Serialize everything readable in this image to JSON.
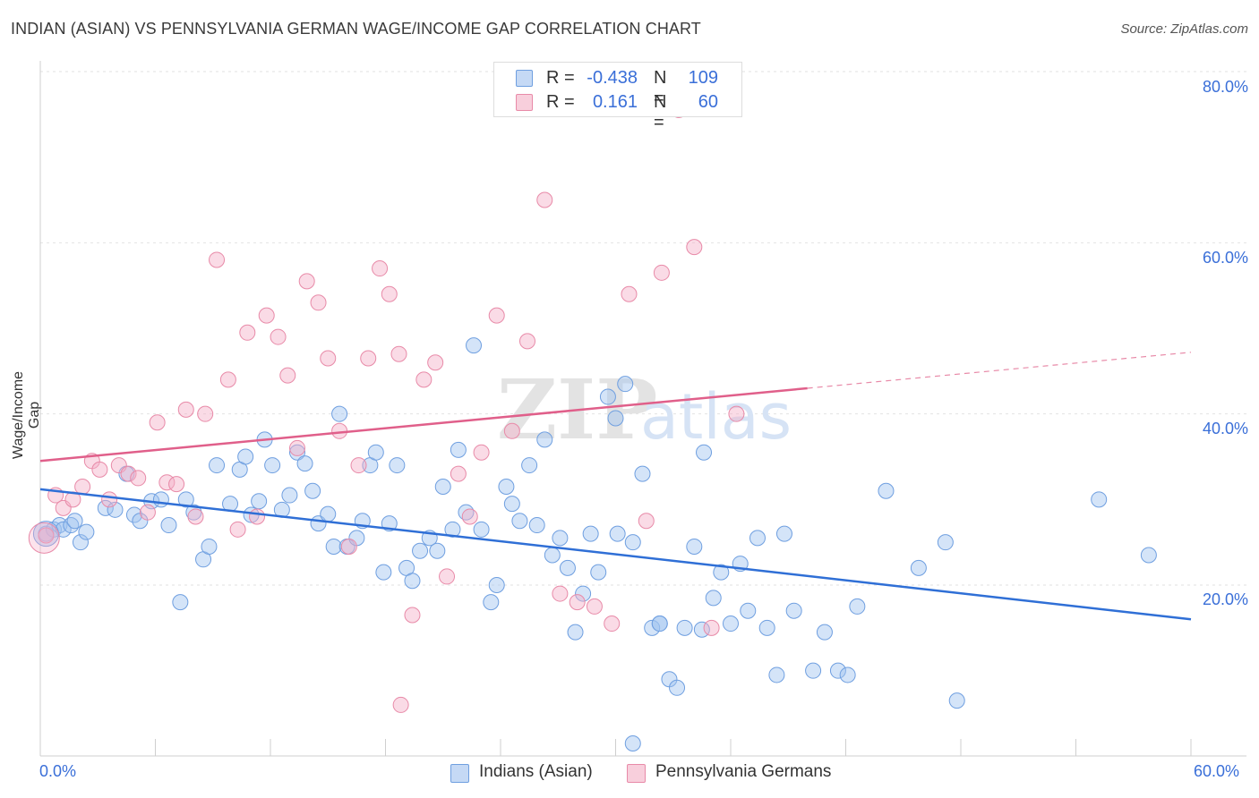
{
  "title": "INDIAN (ASIAN) VS PENNSYLVANIA GERMAN WAGE/INCOME GAP CORRELATION CHART",
  "source": "Source: ZipAtlas.com",
  "watermark": {
    "zip": "ZIP",
    "atlas": "atlas"
  },
  "legend": {
    "rows": [
      {
        "r_label": "R =",
        "r_value": "-0.438",
        "n_label": "N =",
        "n_value": "109",
        "color": "#6f9fe0",
        "fill": "#c5d9f5"
      },
      {
        "r_label": "R =",
        "r_value": "0.161",
        "n_label": "N =",
        "n_value": "60",
        "color": "#e88aa8",
        "fill": "#f8cfdc"
      }
    ]
  },
  "bottom_legend": [
    {
      "label": "Indians (Asian)",
      "color": "#6f9fe0",
      "fill": "#c5d9f5"
    },
    {
      "label": "Pennsylvania Germans",
      "color": "#e88aa8",
      "fill": "#f8cfdc"
    }
  ],
  "chart_data": {
    "type": "scatter",
    "title": "INDIAN (ASIAN) VS PENNSYLVANIA GERMAN WAGE/INCOME GAP CORRELATION CHART",
    "xlabel": "",
    "ylabel": "Wage/Income Gap",
    "x_ticks": [
      "0.0%",
      "60.0%"
    ],
    "y_ticks": [
      "20.0%",
      "40.0%",
      "60.0%",
      "80.0%"
    ],
    "xlim": [
      0,
      60
    ],
    "ylim": [
      0,
      82
    ],
    "grid": true,
    "series": [
      {
        "name": "Indians (Asian)",
        "color": "#3a75d8",
        "points": [
          [
            0.3,
            26.0
          ],
          [
            0.7,
            26.5
          ],
          [
            1.0,
            27.0
          ],
          [
            1.2,
            26.5
          ],
          [
            1.6,
            27.0
          ],
          [
            1.8,
            27.5
          ],
          [
            2.1,
            25.0
          ],
          [
            2.4,
            26.2
          ],
          [
            3.4,
            29.0
          ],
          [
            3.9,
            28.8
          ],
          [
            4.5,
            33.0
          ],
          [
            4.9,
            28.2
          ],
          [
            5.2,
            27.5
          ],
          [
            5.8,
            29.8
          ],
          [
            6.3,
            30.0
          ],
          [
            6.7,
            27.0
          ],
          [
            7.3,
            18.0
          ],
          [
            7.6,
            30.0
          ],
          [
            8.0,
            28.5
          ],
          [
            8.5,
            23.0
          ],
          [
            8.8,
            24.5
          ],
          [
            9.2,
            34.0
          ],
          [
            9.9,
            29.5
          ],
          [
            10.4,
            33.5
          ],
          [
            10.7,
            35.0
          ],
          [
            11.0,
            28.2
          ],
          [
            11.4,
            29.8
          ],
          [
            11.7,
            37.0
          ],
          [
            12.1,
            34.0
          ],
          [
            12.6,
            28.8
          ],
          [
            13.0,
            30.5
          ],
          [
            13.4,
            35.5
          ],
          [
            13.8,
            34.2
          ],
          [
            14.2,
            31.0
          ],
          [
            14.5,
            27.2
          ],
          [
            15.0,
            28.3
          ],
          [
            15.3,
            24.5
          ],
          [
            15.6,
            40.0
          ],
          [
            16.0,
            24.5
          ],
          [
            16.5,
            25.5
          ],
          [
            16.8,
            27.5
          ],
          [
            17.2,
            34.0
          ],
          [
            17.5,
            35.5
          ],
          [
            17.9,
            21.5
          ],
          [
            18.2,
            27.2
          ],
          [
            18.6,
            34.0
          ],
          [
            19.1,
            22.0
          ],
          [
            19.4,
            20.5
          ],
          [
            19.8,
            24.0
          ],
          [
            20.3,
            25.5
          ],
          [
            20.7,
            24.0
          ],
          [
            21.0,
            31.5
          ],
          [
            21.5,
            26.5
          ],
          [
            21.8,
            35.8
          ],
          [
            22.2,
            28.5
          ],
          [
            22.6,
            48.0
          ],
          [
            23.0,
            26.5
          ],
          [
            23.5,
            18.0
          ],
          [
            23.8,
            20.0
          ],
          [
            24.3,
            31.5
          ],
          [
            24.6,
            29.5
          ],
          [
            25.0,
            27.5
          ],
          [
            25.5,
            34.0
          ],
          [
            25.9,
            27.0
          ],
          [
            26.3,
            37.0
          ],
          [
            26.7,
            23.5
          ],
          [
            27.1,
            25.5
          ],
          [
            27.5,
            22.0
          ],
          [
            27.9,
            14.5
          ],
          [
            28.3,
            19.0
          ],
          [
            28.7,
            26.0
          ],
          [
            29.1,
            21.5
          ],
          [
            29.6,
            42.0
          ],
          [
            30.0,
            39.5
          ],
          [
            30.5,
            43.5
          ],
          [
            30.9,
            25.0
          ],
          [
            31.4,
            33.0
          ],
          [
            31.9,
            15.0
          ],
          [
            32.3,
            15.5
          ],
          [
            32.8,
            9.0
          ],
          [
            33.2,
            8.0
          ],
          [
            33.6,
            15.0
          ],
          [
            34.1,
            24.5
          ],
          [
            34.6,
            35.5
          ],
          [
            35.1,
            18.5
          ],
          [
            35.5,
            21.5
          ],
          [
            36.0,
            15.5
          ],
          [
            36.5,
            22.5
          ],
          [
            36.9,
            17.0
          ],
          [
            37.4,
            25.5
          ],
          [
            37.9,
            15.0
          ],
          [
            38.4,
            9.5
          ],
          [
            38.8,
            26.0
          ],
          [
            39.3,
            17.0
          ],
          [
            40.3,
            10.0
          ],
          [
            40.9,
            14.5
          ],
          [
            41.6,
            10.0
          ],
          [
            42.1,
            9.5
          ],
          [
            42.6,
            17.5
          ],
          [
            44.1,
            31.0
          ],
          [
            45.8,
            22.0
          ],
          [
            47.2,
            25.0
          ],
          [
            47.8,
            6.5
          ],
          [
            55.2,
            30.0
          ],
          [
            57.8,
            23.5
          ],
          [
            30.9,
            1.5
          ],
          [
            32.3,
            15.5
          ],
          [
            30.1,
            26.0
          ],
          [
            34.5,
            14.8
          ]
        ]
      },
      {
        "name": "Pennsylvania Germans",
        "color": "#e05f8a",
        "points": [
          [
            0.3,
            25.8
          ],
          [
            0.8,
            30.5
          ],
          [
            1.2,
            29.0
          ],
          [
            1.7,
            30.0
          ],
          [
            2.2,
            31.5
          ],
          [
            2.7,
            34.5
          ],
          [
            3.1,
            33.5
          ],
          [
            3.6,
            30.0
          ],
          [
            4.1,
            34.0
          ],
          [
            4.6,
            33.0
          ],
          [
            5.1,
            32.5
          ],
          [
            5.6,
            28.5
          ],
          [
            6.1,
            39.0
          ],
          [
            6.6,
            32.0
          ],
          [
            7.1,
            31.8
          ],
          [
            7.6,
            40.5
          ],
          [
            8.1,
            28.0
          ],
          [
            8.6,
            40.0
          ],
          [
            9.2,
            58.0
          ],
          [
            9.8,
            44.0
          ],
          [
            10.3,
            26.5
          ],
          [
            10.8,
            49.5
          ],
          [
            11.3,
            28.0
          ],
          [
            11.8,
            51.5
          ],
          [
            12.4,
            49.0
          ],
          [
            12.9,
            44.5
          ],
          [
            13.4,
            36.0
          ],
          [
            13.9,
            55.5
          ],
          [
            14.5,
            53.0
          ],
          [
            15.0,
            46.5
          ],
          [
            15.6,
            38.0
          ],
          [
            16.1,
            24.5
          ],
          [
            16.6,
            34.0
          ],
          [
            17.1,
            46.5
          ],
          [
            17.7,
            57.0
          ],
          [
            18.2,
            54.0
          ],
          [
            18.7,
            47.0
          ],
          [
            19.4,
            16.5
          ],
          [
            20.0,
            44.0
          ],
          [
            20.6,
            46.0
          ],
          [
            21.2,
            21.0
          ],
          [
            21.8,
            33.0
          ],
          [
            22.4,
            28.0
          ],
          [
            23.0,
            35.5
          ],
          [
            23.8,
            51.5
          ],
          [
            24.6,
            38.0
          ],
          [
            25.4,
            48.5
          ],
          [
            26.3,
            65.0
          ],
          [
            27.1,
            19.0
          ],
          [
            28.0,
            18.0
          ],
          [
            28.9,
            17.5
          ],
          [
            29.8,
            15.5
          ],
          [
            30.7,
            54.0
          ],
          [
            31.6,
            27.5
          ],
          [
            32.4,
            56.5
          ],
          [
            33.3,
            75.5
          ],
          [
            34.1,
            59.5
          ],
          [
            35.0,
            15.0
          ],
          [
            36.3,
            40.0
          ],
          [
            18.8,
            6.0
          ]
        ]
      }
    ],
    "trend_lines": [
      {
        "series": "Indians (Asian)",
        "x": [
          0,
          60
        ],
        "y": [
          31.2,
          16.0
        ]
      },
      {
        "series": "Pennsylvania Germans",
        "x": [
          0,
          40
        ],
        "y": [
          34.5,
          43.0
        ],
        "dashed_to": [
          60,
          47.2
        ]
      }
    ]
  }
}
